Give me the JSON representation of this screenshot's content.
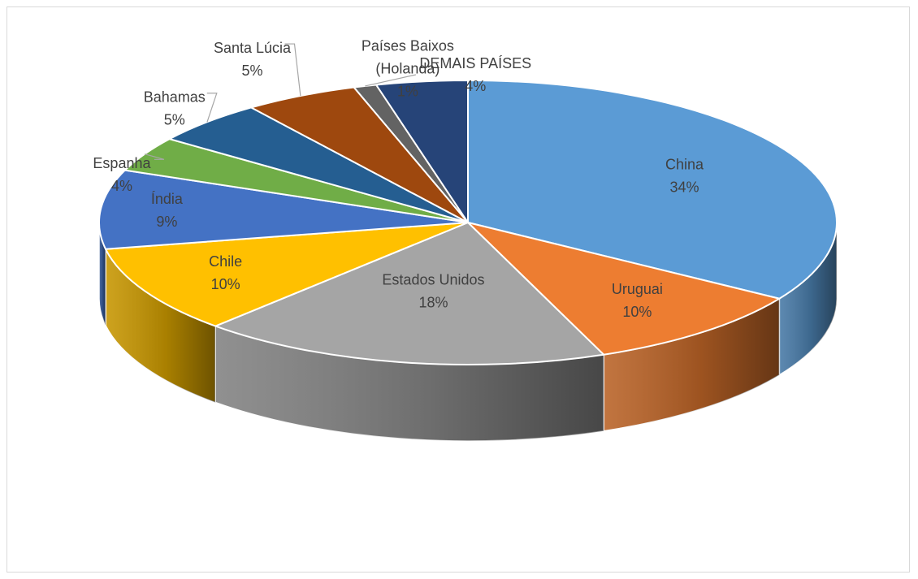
{
  "chart_data": {
    "type": "pie",
    "style": "3d-pie",
    "title": "",
    "labels": [
      "China",
      "Uruguai",
      "Estados Unidos",
      "Chile",
      "Índia",
      "Espanha",
      "Bahamas",
      "Santa Lúcia",
      "Países Baixos (Holanda)",
      "DEMAIS PAÍSES"
    ],
    "values": [
      34,
      10,
      18,
      10,
      9,
      4,
      5,
      5,
      1,
      4
    ],
    "value_labels": [
      "34%",
      "10%",
      "18%",
      "10%",
      "9%",
      "4%",
      "5%",
      "5%",
      "1%",
      "4%"
    ],
    "colors": [
      "#5b9bd5",
      "#ed7d31",
      "#a5a5a5",
      "#ffc000",
      "#4472c4",
      "#70ad47",
      "#255e91",
      "#9e480e",
      "#636363",
      "#264478"
    ],
    "label_lines": [
      [
        "China"
      ],
      [
        "Uruguai"
      ],
      [
        "Estados Unidos"
      ],
      [
        "Chile"
      ],
      [
        "Índia"
      ],
      [
        "Espanha"
      ],
      [
        "Bahamas"
      ],
      [
        "Santa Lúcia"
      ],
      [
        "Países Baixos",
        "(Holanda)"
      ],
      [
        "DEMAIS PAÍSES"
      ]
    ],
    "legend": "none"
  }
}
